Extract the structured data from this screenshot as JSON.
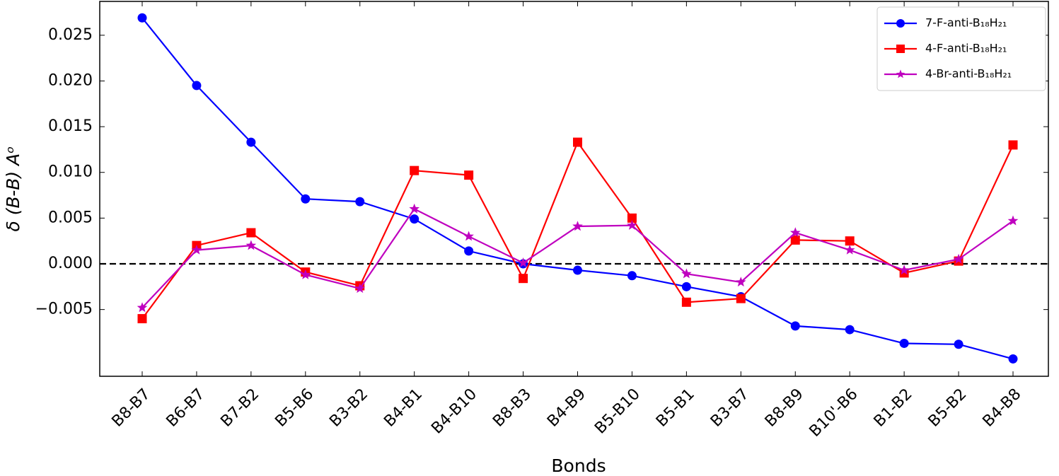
{
  "chart_data": {
    "type": "line",
    "x_label": "Bonds",
    "y_label": "δ (B-B) Aᵒ",
    "categories": [
      "B8-B7",
      "B6-B7",
      "B7-B2",
      "B5-B6",
      "B3-B2",
      "B4-B1",
      "B4-B10",
      "B8-B3",
      "B4-B9",
      "B5-B10",
      "B5-B1",
      "B3-B7",
      "B8-B9",
      "B10'-B6",
      "B1-B2",
      "B5-B2",
      "B4-B8"
    ],
    "series": [
      {
        "name": "7-F-anti-B₁₈H₂₁",
        "color": "#0000ff",
        "marker": "circle",
        "values": [
          0.0269,
          0.0195,
          0.0133,
          0.0071,
          0.0068,
          0.0049,
          0.0014,
          0.0,
          -0.0007,
          -0.0013,
          -0.0025,
          -0.0036,
          -0.0068,
          -0.0072,
          -0.0087,
          -0.0088,
          -0.0104
        ]
      },
      {
        "name": "4-F-anti-B₁₈H₂₁",
        "color": "#ff0000",
        "marker": "square",
        "values": [
          -0.006,
          0.002,
          0.0034,
          -0.0009,
          -0.0024,
          0.0102,
          0.0097,
          -0.0016,
          0.0133,
          0.005,
          -0.0042,
          -0.0038,
          0.0026,
          0.0025,
          -0.001,
          0.0003,
          0.013
        ]
      },
      {
        "name": "4-Br-anti-B₁₈H₂₁",
        "color": "#bf00bf",
        "marker": "star",
        "values": [
          -0.0048,
          0.0015,
          0.002,
          -0.0012,
          -0.0027,
          0.006,
          0.003,
          0.0001,
          0.0041,
          0.0042,
          -0.0011,
          -0.002,
          0.0034,
          0.0015,
          -0.0007,
          0.0005,
          0.0047
        ]
      }
    ],
    "ylim": [
      -0.0123,
      0.0287
    ],
    "yticks": [
      {
        "value": -0.005,
        "label": "−0.005"
      },
      {
        "value": 0,
        "label": "0.000"
      },
      {
        "value": 0.005,
        "label": "0.005"
      },
      {
        "value": 0.01,
        "label": "0.010"
      },
      {
        "value": 0.015,
        "label": "0.015"
      },
      {
        "value": 0.02,
        "label": "0.020"
      },
      {
        "value": 0.025,
        "label": "0.025"
      }
    ],
    "reference_line": 0,
    "legend": "upper right",
    "grid": false
  }
}
